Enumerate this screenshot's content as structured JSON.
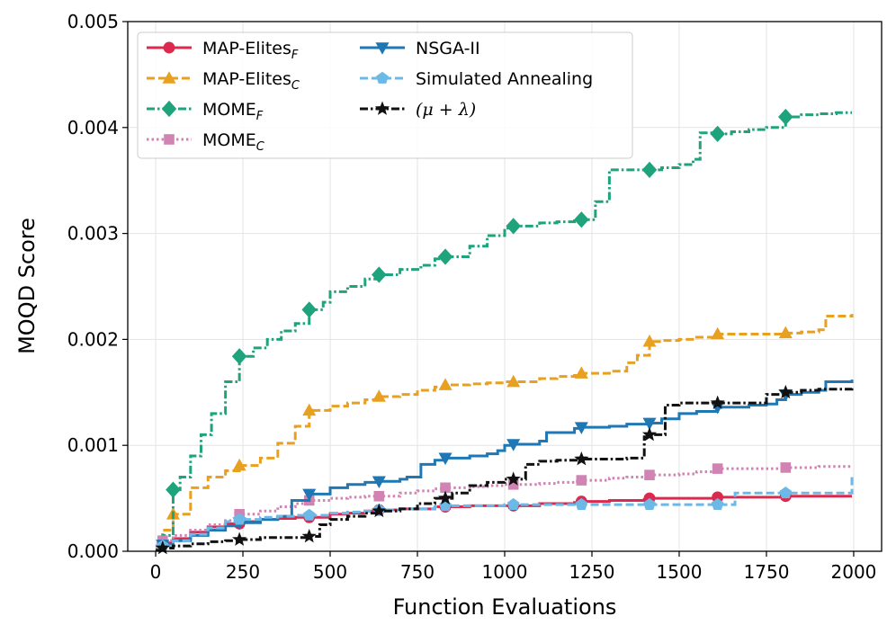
{
  "chart_data": {
    "type": "line",
    "xlabel": "Function Evaluations",
    "ylabel": "MOQD Score",
    "xlim": [
      -80,
      2080
    ],
    "ylim": [
      0,
      0.005
    ],
    "xticks": [
      0,
      250,
      500,
      750,
      1000,
      1250,
      1500,
      1750,
      2000
    ],
    "xtick_labels": [
      "0",
      "250",
      "500",
      "750",
      "1000",
      "1250",
      "1500",
      "1750",
      "2000"
    ],
    "yticks": [
      0,
      0.001,
      0.002,
      0.003,
      0.004,
      0.005
    ],
    "ytick_labels": [
      "0.000",
      "0.001",
      "0.002",
      "0.003",
      "0.004",
      "0.005"
    ],
    "grid": true,
    "legend_position": "top-left",
    "series": [
      {
        "name": "MAP-Elites_F",
        "label_main": "MAP-Elites",
        "label_sub": "F",
        "color": "#dc2a4f",
        "dash": "solid",
        "marker": "circle",
        "x": [
          0,
          20,
          50,
          100,
          150,
          200,
          250,
          300,
          350,
          400,
          440,
          500,
          550,
          600,
          640,
          700,
          800,
          900,
          1000,
          1025,
          1100,
          1200,
          1220,
          1300,
          1400,
          1415,
          1500,
          1600,
          1610,
          1700,
          1800,
          1805,
          1900,
          1995
        ],
        "values": [
          2e-05,
          8e-05,
          0.00012,
          0.00018,
          0.00023,
          0.00026,
          0.00028,
          0.0003,
          0.00031,
          0.00032,
          0.00032,
          0.00035,
          0.00036,
          0.00038,
          0.00039,
          0.0004,
          0.00042,
          0.00043,
          0.00043,
          0.00043,
          0.00045,
          0.00046,
          0.00047,
          0.00048,
          0.00049,
          0.0005,
          0.0005,
          0.00051,
          0.00051,
          0.00051,
          0.00052,
          0.00052,
          0.00052,
          0.00052
        ],
        "marker_x": [
          20,
          240,
          440,
          640,
          830,
          1025,
          1220,
          1415,
          1610,
          1805
        ]
      },
      {
        "name": "MAP-Elites_C",
        "label_main": "MAP-Elites",
        "label_sub": "C",
        "color": "#e8a020",
        "dash": "dashed",
        "marker": "triangle",
        "x": [
          0,
          20,
          50,
          100,
          150,
          200,
          240,
          300,
          350,
          400,
          440,
          500,
          550,
          600,
          640,
          700,
          750,
          800,
          830,
          900,
          950,
          1000,
          1025,
          1100,
          1150,
          1200,
          1220,
          1300,
          1350,
          1380,
          1415,
          1450,
          1500,
          1550,
          1610,
          1700,
          1750,
          1805,
          1850,
          1900,
          1920,
          1995
        ],
        "values": [
          5e-05,
          0.0002,
          0.00035,
          0.0006,
          0.0007,
          0.00076,
          0.00081,
          0.00088,
          0.00102,
          0.00118,
          0.00133,
          0.00137,
          0.0014,
          0.00143,
          0.00146,
          0.00148,
          0.00152,
          0.00155,
          0.00157,
          0.00158,
          0.00159,
          0.0016,
          0.0016,
          0.00163,
          0.00165,
          0.00166,
          0.00168,
          0.0017,
          0.00178,
          0.00185,
          0.00198,
          0.00199,
          0.002,
          0.00202,
          0.00205,
          0.00205,
          0.00205,
          0.00206,
          0.00207,
          0.00209,
          0.00222,
          0.00224
        ],
        "marker_x": [
          50,
          240,
          440,
          640,
          830,
          1025,
          1220,
          1415,
          1610,
          1805
        ]
      },
      {
        "name": "MOME_F",
        "label_main": "MOME",
        "label_sub": "F",
        "color": "#1fa37c",
        "dash": "dashdot",
        "marker": "diamond",
        "x": [
          0,
          20,
          50,
          70,
          100,
          130,
          160,
          200,
          240,
          280,
          320,
          360,
          400,
          440,
          480,
          500,
          550,
          600,
          640,
          700,
          760,
          800,
          830,
          900,
          950,
          1000,
          1025,
          1100,
          1150,
          1200,
          1220,
          1260,
          1300,
          1350,
          1380,
          1415,
          1450,
          1500,
          1540,
          1560,
          1610,
          1650,
          1700,
          1750,
          1805,
          1850,
          1900,
          1950,
          1995
        ],
        "values": [
          2e-05,
          0.00015,
          0.00058,
          0.0007,
          0.0009,
          0.0011,
          0.0013,
          0.0016,
          0.00184,
          0.00192,
          0.002,
          0.00208,
          0.00215,
          0.00228,
          0.00235,
          0.00245,
          0.0025,
          0.00257,
          0.00261,
          0.00266,
          0.0027,
          0.00276,
          0.00278,
          0.00288,
          0.00298,
          0.00305,
          0.00307,
          0.0031,
          0.00311,
          0.00312,
          0.00313,
          0.0033,
          0.0036,
          0.0036,
          0.0036,
          0.0036,
          0.00362,
          0.00365,
          0.0037,
          0.00395,
          0.00394,
          0.00396,
          0.00398,
          0.004,
          0.0041,
          0.00412,
          0.00413,
          0.00414,
          0.00414
        ],
        "marker_x": [
          50,
          240,
          440,
          640,
          830,
          1025,
          1220,
          1415,
          1610,
          1805
        ]
      },
      {
        "name": "MOME_C",
        "label_main": "MOME",
        "label_sub": "C",
        "color": "#d183b3",
        "dash": "dotted",
        "marker": "square",
        "x": [
          0,
          20,
          50,
          100,
          150,
          200,
          240,
          300,
          350,
          400,
          440,
          500,
          550,
          600,
          640,
          700,
          750,
          800,
          830,
          900,
          950,
          1000,
          1025,
          1100,
          1150,
          1200,
          1220,
          1300,
          1350,
          1400,
          1415,
          1500,
          1550,
          1610,
          1700,
          1750,
          1805,
          1900,
          1995
        ],
        "values": [
          5e-05,
          0.0001,
          0.00015,
          0.0002,
          0.00025,
          0.00029,
          0.00035,
          0.00038,
          0.00042,
          0.00045,
          0.00048,
          0.0005,
          0.00051,
          0.00052,
          0.00052,
          0.00055,
          0.00057,
          0.00059,
          0.0006,
          0.00061,
          0.00062,
          0.00063,
          0.00063,
          0.00064,
          0.00065,
          0.00066,
          0.00067,
          0.00069,
          0.0007,
          0.00071,
          0.00072,
          0.00073,
          0.00075,
          0.00078,
          0.00078,
          0.00078,
          0.00079,
          0.0008,
          0.00081
        ],
        "marker_x": [
          20,
          240,
          440,
          640,
          830,
          1025,
          1220,
          1415,
          1610,
          1805
        ]
      },
      {
        "name": "NSGA-II",
        "label_main": "NSGA-II",
        "label_sub": "",
        "color": "#1f77b4",
        "dash": "solid",
        "marker": "triangle-down",
        "x": [
          0,
          20,
          50,
          100,
          150,
          200,
          240,
          300,
          350,
          390,
          440,
          500,
          550,
          600,
          640,
          700,
          720,
          760,
          800,
          830,
          900,
          950,
          980,
          1000,
          1025,
          1100,
          1120,
          1200,
          1220,
          1300,
          1350,
          1400,
          1415,
          1450,
          1500,
          1550,
          1610,
          1700,
          1750,
          1780,
          1805,
          1850,
          1900,
          1920,
          1995
        ],
        "values": [
          2e-05,
          6e-05,
          0.0001,
          0.00015,
          0.0002,
          0.00024,
          0.00027,
          0.0003,
          0.00033,
          0.00048,
          0.00054,
          0.0006,
          0.00063,
          0.00065,
          0.00066,
          0.00068,
          0.0007,
          0.00082,
          0.00086,
          0.00088,
          0.0009,
          0.00092,
          0.00095,
          0.001,
          0.00101,
          0.00104,
          0.00112,
          0.00116,
          0.00117,
          0.00118,
          0.0012,
          0.0012,
          0.00121,
          0.00125,
          0.0013,
          0.00132,
          0.00136,
          0.00138,
          0.00139,
          0.00143,
          0.00148,
          0.0015,
          0.00152,
          0.0016,
          0.00162
        ],
        "marker_x": [
          20,
          240,
          440,
          640,
          830,
          1025,
          1220,
          1415,
          1610,
          1805
        ]
      },
      {
        "name": "Simulated Annealing",
        "label_main": "Simulated Annealing",
        "label_sub": "",
        "color": "#6cb8e6",
        "dash": "dashed",
        "marker": "pentagon",
        "x": [
          0,
          20,
          50,
          100,
          150,
          200,
          240,
          300,
          350,
          400,
          440,
          500,
          550,
          600,
          640,
          700,
          800,
          830,
          900,
          1000,
          1025,
          1100,
          1200,
          1220,
          1300,
          1400,
          1415,
          1500,
          1600,
          1610,
          1660,
          1700,
          1800,
          1805,
          1900,
          1960,
          1995
        ],
        "values": [
          2e-05,
          5e-05,
          0.0001,
          0.00016,
          0.00022,
          0.00028,
          0.0003,
          0.00032,
          0.00033,
          0.00034,
          0.00034,
          0.00036,
          0.00037,
          0.00038,
          0.00039,
          0.0004,
          0.00042,
          0.00043,
          0.00043,
          0.00044,
          0.00044,
          0.00044,
          0.00044,
          0.00044,
          0.00044,
          0.00044,
          0.00044,
          0.00044,
          0.00044,
          0.00044,
          0.00055,
          0.00055,
          0.00055,
          0.00055,
          0.00055,
          0.00055,
          0.00072
        ],
        "marker_x": [
          20,
          240,
          440,
          640,
          830,
          1025,
          1220,
          1415,
          1610,
          1805
        ]
      },
      {
        "name": "(μ + λ)",
        "label_main": "(μ + λ)",
        "label_sub": "",
        "color": "#111111",
        "dash": "dashdot",
        "marker": "star",
        "x": [
          0,
          20,
          50,
          100,
          150,
          200,
          240,
          300,
          350,
          400,
          440,
          470,
          500,
          550,
          600,
          640,
          700,
          750,
          800,
          830,
          850,
          900,
          950,
          1000,
          1020,
          1060,
          1100,
          1150,
          1200,
          1220,
          1300,
          1350,
          1400,
          1415,
          1460,
          1500,
          1550,
          1610,
          1700,
          1750,
          1805,
          1850,
          1900,
          1995
        ],
        "values": [
          1e-05,
          3e-05,
          5e-05,
          7e-05,
          9e-05,
          0.0001,
          0.00011,
          0.00013,
          0.00013,
          0.00013,
          0.00014,
          0.00025,
          0.0003,
          0.00033,
          0.00036,
          0.00038,
          0.0004,
          0.00045,
          0.0005,
          0.0005,
          0.00055,
          0.00062,
          0.00065,
          0.00068,
          0.00068,
          0.00082,
          0.00085,
          0.00086,
          0.00086,
          0.00087,
          0.00087,
          0.00088,
          0.00108,
          0.0011,
          0.00138,
          0.0014,
          0.0014,
          0.0014,
          0.0014,
          0.00148,
          0.0015,
          0.00152,
          0.00153,
          0.00155
        ],
        "marker_x": [
          20,
          240,
          440,
          640,
          830,
          1025,
          1220,
          1415,
          1610,
          1805
        ]
      }
    ]
  }
}
